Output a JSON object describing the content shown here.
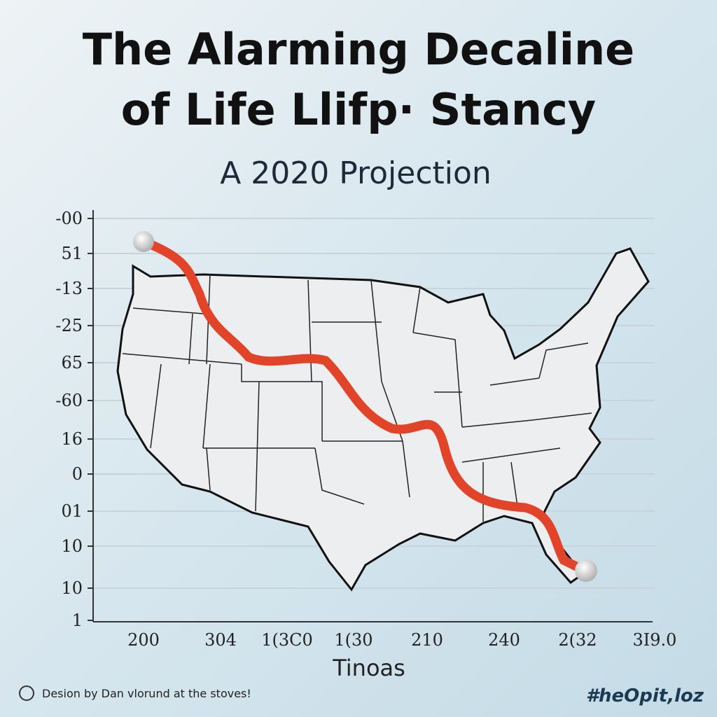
{
  "header": {
    "title_lines": [
      "The Alarming Decaline",
      "of  Life Llifp· Stancy"
    ],
    "subtitle": "A 2020 Projection"
  },
  "axis": {
    "y_labels": [
      "-00",
      "51",
      "-13",
      "-25",
      "65",
      "-60",
      "16",
      "0",
      "01",
      "10",
      "10",
      "1"
    ],
    "x_labels": [
      "200",
      "304",
      "1(3C0",
      "1(30",
      "210",
      "240",
      "2(32",
      "3I9.0"
    ],
    "x_title": "Tinoas"
  },
  "footer": {
    "credit": "Desion by Dan vlorund at the stoves!",
    "tag": "#heOpit,loz"
  }
}
